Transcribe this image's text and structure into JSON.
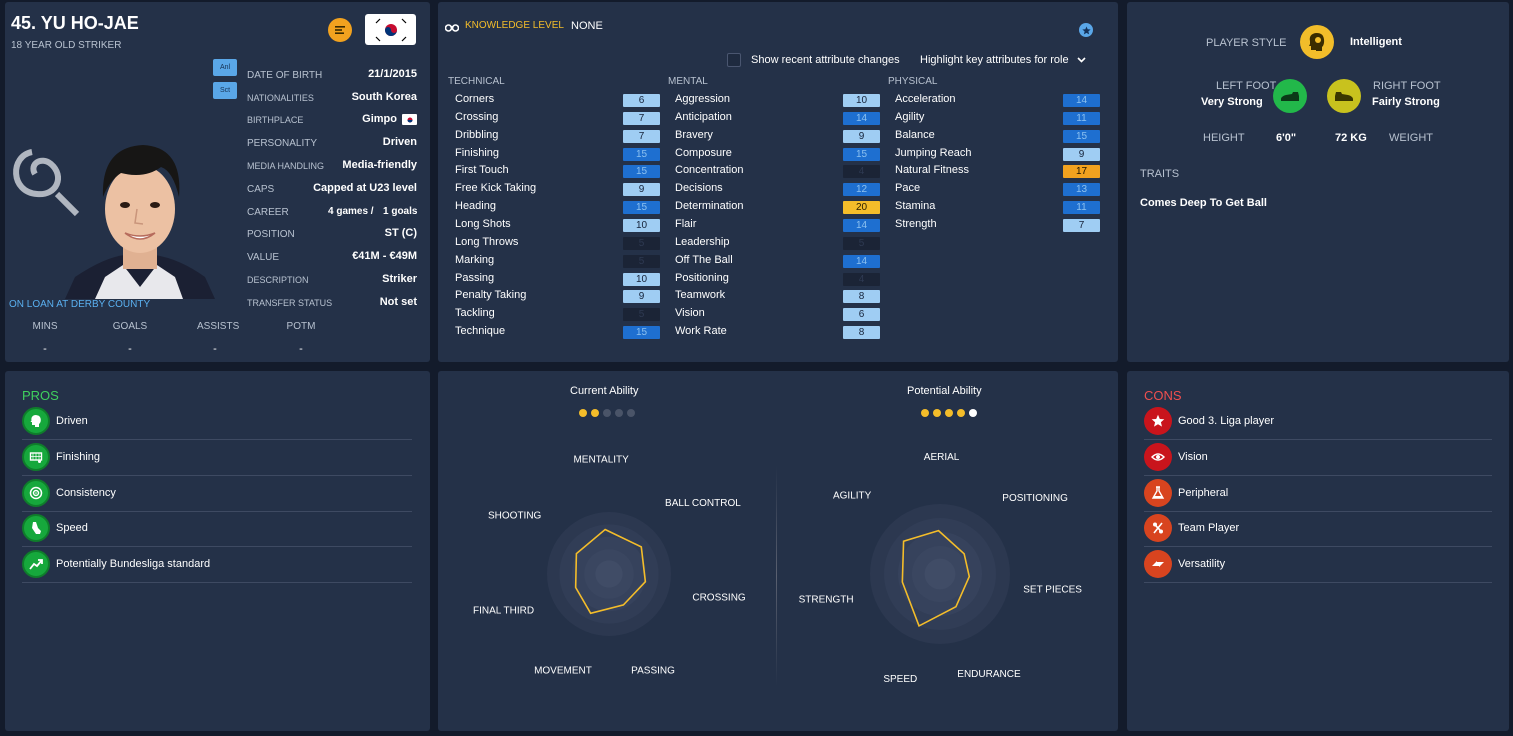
{
  "player": {
    "name": "45. YU HO-JAE",
    "subtitle": "18 YEAR OLD STRIKER",
    "loan": "ON LOAN AT DERBY COUNTY",
    "tag1": "Anl",
    "tag2": "Sct"
  },
  "details": [
    {
      "label": "DATE OF BIRTH",
      "value": "21/1/2015"
    },
    {
      "label": "NATIONALITIES",
      "value": "South Korea"
    },
    {
      "label": "BIRTHPLACE",
      "value": "Gimpo"
    },
    {
      "label": "PERSONALITY",
      "value": "Driven"
    },
    {
      "label": "MEDIA HANDLING",
      "value": "Media-friendly"
    },
    {
      "label": "CAPS",
      "value": "Capped at U23 level"
    },
    {
      "label": "CAREER",
      "value_games": "4 games /",
      "value_goals": "1 goals"
    },
    {
      "label": "POSITION",
      "value": "ST (C)"
    },
    {
      "label": "VALUE",
      "value": "€41M - €49M"
    },
    {
      "label": "DESCRIPTION",
      "value": "Striker"
    },
    {
      "label": "TRANSFER STATUS",
      "value": "Not set"
    }
  ],
  "stats": {
    "headers": [
      "MINS",
      "GOALS",
      "ASSISTS",
      "POTM"
    ],
    "values": [
      "-",
      "-",
      "-",
      "-"
    ]
  },
  "knowledge": {
    "label": "KNOWLEDGE LEVEL",
    "value": "NONE"
  },
  "controls": {
    "show_changes": "Show recent attribute changes",
    "highlight": "Highlight key attributes for role"
  },
  "technical": {
    "title": "TECHNICAL",
    "items": [
      {
        "name": "Corners",
        "value": "6",
        "style": "b-light"
      },
      {
        "name": "Crossing",
        "value": "7",
        "style": "b-light"
      },
      {
        "name": "Dribbling",
        "value": "7",
        "style": "b-light"
      },
      {
        "name": "Finishing",
        "value": "15",
        "style": "b-blue"
      },
      {
        "name": "First Touch",
        "value": "15",
        "style": "b-blue"
      },
      {
        "name": "Free Kick Taking",
        "value": "9",
        "style": "b-light"
      },
      {
        "name": "Heading",
        "value": "15",
        "style": "b-blue"
      },
      {
        "name": "Long Shots",
        "value": "10",
        "style": "b-light"
      },
      {
        "name": "Long Throws",
        "value": "5",
        "style": "b-dark"
      },
      {
        "name": "Marking",
        "value": "5",
        "style": "b-dark"
      },
      {
        "name": "Passing",
        "value": "10",
        "style": "b-light"
      },
      {
        "name": "Penalty Taking",
        "value": "9",
        "style": "b-light"
      },
      {
        "name": "Tackling",
        "value": "5",
        "style": "b-dark"
      },
      {
        "name": "Technique",
        "value": "15",
        "style": "b-blue"
      }
    ]
  },
  "mental": {
    "title": "MENTAL",
    "items": [
      {
        "name": "Aggression",
        "value": "10",
        "style": "b-light"
      },
      {
        "name": "Anticipation",
        "value": "14",
        "style": "b-blue"
      },
      {
        "name": "Bravery",
        "value": "9",
        "style": "b-light"
      },
      {
        "name": "Composure",
        "value": "15",
        "style": "b-blue"
      },
      {
        "name": "Concentration",
        "value": "4",
        "style": "b-dark"
      },
      {
        "name": "Decisions",
        "value": "12",
        "style": "b-blue"
      },
      {
        "name": "Determination",
        "value": "20",
        "style": "b-gold"
      },
      {
        "name": "Flair",
        "value": "14",
        "style": "b-blue"
      },
      {
        "name": "Leadership",
        "value": "5",
        "style": "b-dark"
      },
      {
        "name": "Off The Ball",
        "value": "14",
        "style": "b-blue"
      },
      {
        "name": "Positioning",
        "value": "4",
        "style": "b-dark"
      },
      {
        "name": "Teamwork",
        "value": "8",
        "style": "b-light"
      },
      {
        "name": "Vision",
        "value": "6",
        "style": "b-light"
      },
      {
        "name": "Work Rate",
        "value": "8",
        "style": "b-light"
      }
    ]
  },
  "physical": {
    "title": "PHYSICAL",
    "items": [
      {
        "name": "Acceleration",
        "value": "14",
        "style": "b-blue"
      },
      {
        "name": "Agility",
        "value": "11",
        "style": "b-blue"
      },
      {
        "name": "Balance",
        "value": "15",
        "style": "b-blue"
      },
      {
        "name": "Jumping Reach",
        "value": "9",
        "style": "b-light"
      },
      {
        "name": "Natural Fitness",
        "value": "17",
        "style": "b-orange"
      },
      {
        "name": "Pace",
        "value": "13",
        "style": "b-blue"
      },
      {
        "name": "Stamina",
        "value": "11",
        "style": "b-blue"
      },
      {
        "name": "Strength",
        "value": "7",
        "style": "b-light"
      }
    ]
  },
  "profile": {
    "player_style_label": "PLAYER STYLE",
    "player_style": "Intelligent",
    "left_foot_label": "LEFT FOOT",
    "left_foot": "Very Strong",
    "right_foot_label": "RIGHT FOOT",
    "right_foot": "Fairly Strong",
    "height_label": "HEIGHT",
    "height": "6'0\"",
    "weight": "72 KG",
    "weight_label": "WEIGHT",
    "traits_label": "TRAITS",
    "trait": "Comes Deep To Get Ball"
  },
  "pros": {
    "title": "PROS",
    "items": [
      {
        "label": "Driven",
        "icon": "head-icon"
      },
      {
        "label": "Finishing",
        "icon": "goal-icon"
      },
      {
        "label": "Consistency",
        "icon": "target-icon"
      },
      {
        "label": "Speed",
        "icon": "boot-icon"
      },
      {
        "label": "Potentially Bundesliga standard",
        "icon": "trend-up-icon"
      }
    ]
  },
  "cons": {
    "title": "CONS",
    "items": [
      {
        "label": "Good 3. Liga player",
        "icon": "star-icon"
      },
      {
        "label": "Vision",
        "icon": "eye-icon"
      },
      {
        "label": "Peripheral",
        "icon": "flask-icon"
      },
      {
        "label": "Team Player",
        "icon": "link-icon"
      },
      {
        "label": "Versatility",
        "icon": "arrows-icon"
      }
    ]
  },
  "ability": {
    "current_label": "Current Ability",
    "current_stars": 2,
    "potential_label": "Potential Ability",
    "potential_stars": 4.5
  },
  "chart_data": [
    {
      "type": "radar",
      "axes": [
        "MENTALITY",
        "BALL CONTROL",
        "CROSSING",
        "PASSING",
        "MOVEMENT",
        "FINAL THIRD",
        "SHOOTING"
      ],
      "values": [
        0.72,
        0.68,
        0.6,
        0.55,
        0.7,
        0.58,
        0.62
      ],
      "range": [
        0,
        1
      ]
    },
    {
      "type": "radar",
      "axes": [
        "AERIAL",
        "POSITIONING",
        "SET PIECES",
        "ENDURANCE",
        "SPEED",
        "STRENGTH",
        "AGILITY"
      ],
      "values": [
        0.62,
        0.45,
        0.42,
        0.52,
        0.8,
        0.55,
        0.7
      ],
      "range": [
        0,
        1
      ]
    }
  ],
  "colors": {
    "panel": "#243148",
    "gold": "#f4bd2a",
    "pros": "#3fcf5e",
    "cons": "#ef4f4f"
  }
}
